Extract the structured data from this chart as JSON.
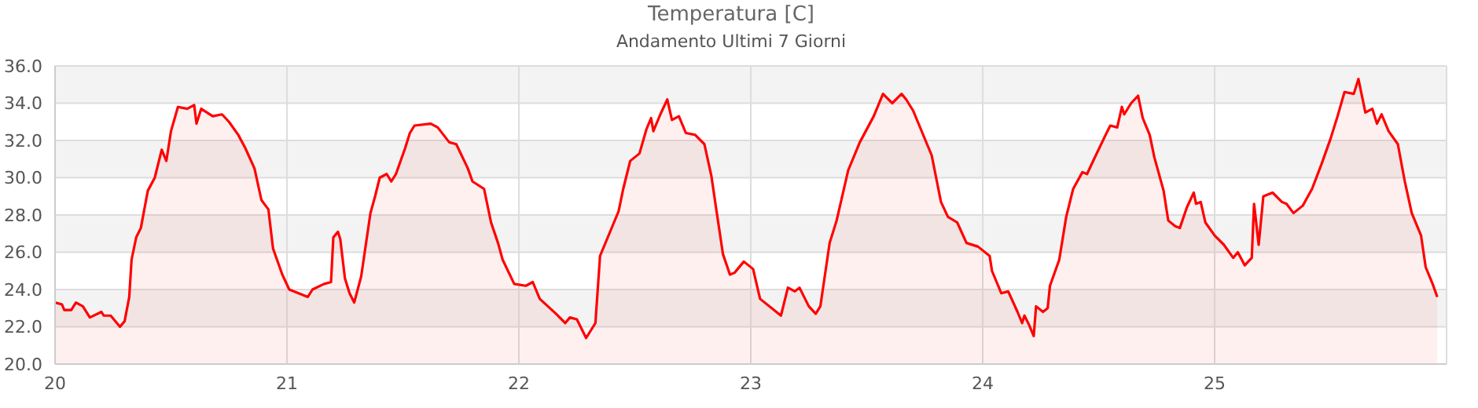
{
  "chart_data": {
    "type": "area",
    "title": "Temperatura [C]",
    "subtitle": "Andamento Ultimi 7 Giorni",
    "xlim": [
      20,
      26
    ],
    "xticks": [
      20,
      21,
      22,
      23,
      24,
      25
    ],
    "ylim": [
      20,
      36
    ],
    "yticks": [
      {
        "value": 20,
        "label": "20.0"
      },
      {
        "value": 22,
        "label": "22.0"
      },
      {
        "value": 24,
        "label": "24.0"
      },
      {
        "value": 26,
        "label": "26.0"
      },
      {
        "value": 28,
        "label": "28.0"
      },
      {
        "value": 30,
        "label": "30.0"
      },
      {
        "value": 32,
        "label": "32.0"
      },
      {
        "value": 34,
        "label": "34.0"
      },
      {
        "value": 36,
        "label": "36.0"
      }
    ],
    "grid": true,
    "x": [
      20.0,
      20.03,
      20.04,
      20.07,
      20.09,
      20.12,
      20.15,
      20.2,
      20.21,
      20.24,
      20.28,
      20.3,
      20.32,
      20.33,
      20.35,
      20.37,
      20.4,
      20.43,
      20.46,
      20.48,
      20.5,
      20.53,
      20.57,
      20.6,
      20.61,
      20.63,
      20.68,
      20.72,
      20.75,
      20.79,
      20.82,
      20.86,
      20.89,
      20.92,
      20.94,
      20.98,
      21.01,
      21.05,
      21.09,
      21.11,
      21.16,
      21.19,
      21.2,
      21.22,
      21.23,
      21.25,
      21.27,
      21.29,
      21.32,
      21.34,
      21.36,
      21.38,
      21.4,
      21.43,
      21.45,
      21.47,
      21.51,
      21.53,
      21.55,
      21.62,
      21.65,
      21.7,
      21.73,
      21.78,
      21.8,
      21.85,
      21.88,
      21.91,
      21.93,
      21.98,
      22.03,
      22.06,
      22.09,
      22.16,
      22.2,
      22.22,
      22.25,
      22.29,
      22.33,
      22.35,
      22.39,
      22.43,
      22.45,
      22.48,
      22.52,
      22.55,
      22.57,
      22.58,
      22.61,
      22.64,
      22.66,
      22.69,
      22.72,
      22.76,
      22.8,
      22.83,
      22.85,
      22.88,
      22.91,
      22.93,
      22.97,
      23.01,
      23.04,
      23.09,
      23.13,
      23.16,
      23.19,
      23.21,
      23.25,
      23.28,
      23.3,
      23.34,
      23.37,
      23.42,
      23.47,
      23.53,
      23.57,
      23.61,
      23.65,
      23.67,
      23.7,
      23.74,
      23.78,
      23.82,
      23.85,
      23.89,
      23.93,
      23.98,
      24.03,
      24.04,
      24.08,
      24.11,
      24.15,
      24.17,
      24.18,
      24.2,
      24.22,
      24.23,
      24.26,
      24.28,
      24.29,
      24.33,
      24.36,
      24.39,
      24.43,
      24.45,
      24.48,
      24.53,
      24.55,
      24.58,
      24.6,
      24.61,
      24.64,
      24.67,
      24.69,
      24.72,
      24.74,
      24.78,
      24.8,
      24.83,
      24.85,
      24.88,
      24.91,
      24.92,
      24.94,
      24.96,
      25.0,
      25.04,
      25.08,
      25.1,
      25.13,
      25.16,
      25.17,
      25.19,
      25.21,
      25.25,
      25.29,
      25.31,
      25.34,
      25.38,
      25.42,
      25.46,
      25.5,
      25.53,
      25.56,
      25.6,
      25.62,
      25.65,
      25.68,
      25.7,
      25.72,
      25.75,
      25.79,
      25.82,
      25.85,
      25.89,
      25.91,
      25.94,
      25.96
    ],
    "series": [
      {
        "color": "#ff0000",
        "values": [
          23.3,
          23.2,
          22.9,
          22.9,
          23.3,
          23.1,
          22.5,
          22.8,
          22.6,
          22.6,
          22.0,
          22.3,
          23.6,
          25.6,
          26.8,
          27.3,
          29.3,
          30.0,
          31.5,
          30.9,
          32.5,
          33.8,
          33.7,
          33.9,
          32.9,
          33.7,
          33.3,
          33.4,
          33.0,
          32.3,
          31.6,
          30.5,
          28.8,
          28.3,
          26.2,
          24.8,
          24.0,
          23.8,
          23.6,
          24.0,
          24.3,
          24.4,
          26.8,
          27.1,
          26.7,
          24.6,
          23.8,
          23.3,
          24.7,
          26.4,
          28.1,
          29.0,
          30.0,
          30.2,
          29.8,
          30.2,
          31.6,
          32.4,
          32.8,
          32.9,
          32.7,
          31.9,
          31.8,
          30.5,
          29.8,
          29.4,
          27.6,
          26.5,
          25.6,
          24.3,
          24.2,
          24.4,
          23.5,
          22.7,
          22.2,
          22.5,
          22.4,
          21.4,
          22.2,
          25.8,
          27.0,
          28.2,
          29.4,
          30.9,
          31.3,
          32.6,
          33.2,
          32.5,
          33.4,
          34.2,
          33.1,
          33.3,
          32.4,
          32.3,
          31.8,
          30.1,
          28.4,
          25.9,
          24.8,
          24.9,
          25.5,
          25.1,
          23.5,
          23.0,
          22.6,
          24.1,
          23.9,
          24.1,
          23.1,
          22.7,
          23.1,
          26.5,
          27.7,
          30.4,
          31.9,
          33.3,
          34.5,
          34.0,
          34.5,
          34.2,
          33.6,
          32.4,
          31.2,
          28.7,
          27.9,
          27.6,
          26.5,
          26.3,
          25.8,
          25.0,
          23.8,
          23.9,
          22.8,
          22.2,
          22.6,
          22.1,
          21.5,
          23.1,
          22.8,
          23.0,
          24.2,
          25.6,
          27.9,
          29.4,
          30.3,
          30.2,
          31.0,
          32.3,
          32.8,
          32.7,
          33.8,
          33.4,
          34.0,
          34.4,
          33.2,
          32.3,
          31.1,
          29.3,
          27.7,
          27.4,
          27.3,
          28.4,
          29.2,
          28.6,
          28.7,
          27.6,
          26.9,
          26.4,
          25.7,
          26.0,
          25.3,
          25.7,
          28.6,
          26.4,
          29.0,
          29.2,
          28.7,
          28.6,
          28.1,
          28.5,
          29.4,
          30.7,
          32.1,
          33.3,
          34.6,
          34.5,
          35.3,
          33.5,
          33.7,
          32.9,
          33.4,
          32.5,
          31.8,
          29.8,
          28.1,
          26.9,
          25.2,
          24.3,
          23.6
        ]
      }
    ]
  }
}
